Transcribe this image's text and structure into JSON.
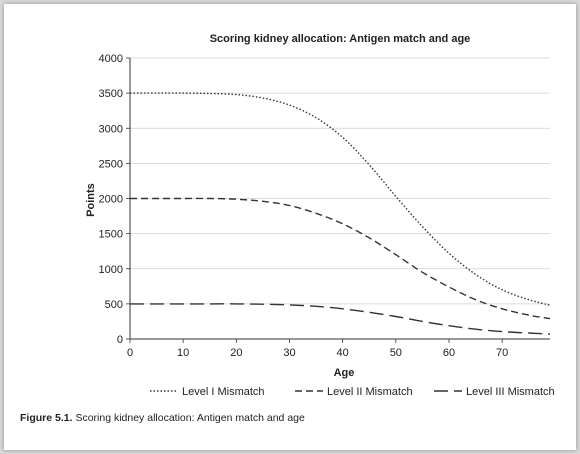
{
  "chart_data": {
    "type": "line",
    "title": "Scoring kidney allocation: Antigen match and age",
    "xlabel": "Age",
    "ylabel": "Points",
    "xlim": [
      0,
      79
    ],
    "ylim": [
      0,
      4000
    ],
    "xticks": [
      0,
      10,
      20,
      30,
      40,
      50,
      60,
      70
    ],
    "yticks": [
      0,
      500,
      1000,
      1500,
      2000,
      2500,
      3000,
      3500,
      4000
    ],
    "grid": "horizontal",
    "legend": "bottom",
    "x": [
      0,
      5,
      10,
      15,
      20,
      25,
      30,
      35,
      40,
      45,
      50,
      55,
      60,
      65,
      70,
      75,
      79
    ],
    "series": [
      {
        "name": "Level I Mismatch",
        "style": "dotted",
        "values": [
          3500,
          3500,
          3500,
          3495,
          3480,
          3430,
          3330,
          3150,
          2870,
          2480,
          2030,
          1600,
          1220,
          920,
          700,
          560,
          480
        ]
      },
      {
        "name": "Level II Mismatch",
        "style": "dashed",
        "values": [
          2000,
          2000,
          2000,
          2000,
          1990,
          1960,
          1900,
          1790,
          1640,
          1440,
          1200,
          950,
          740,
          560,
          430,
          340,
          290
        ]
      },
      {
        "name": "Level III Mismatch",
        "style": "long-dash",
        "values": [
          500,
          500,
          500,
          500,
          500,
          495,
          485,
          465,
          430,
          380,
          320,
          250,
          190,
          140,
          105,
          85,
          70
        ]
      }
    ]
  },
  "caption": {
    "label": "Figure 5.1.",
    "text": "Scoring kidney allocation: Antigen match and age"
  }
}
